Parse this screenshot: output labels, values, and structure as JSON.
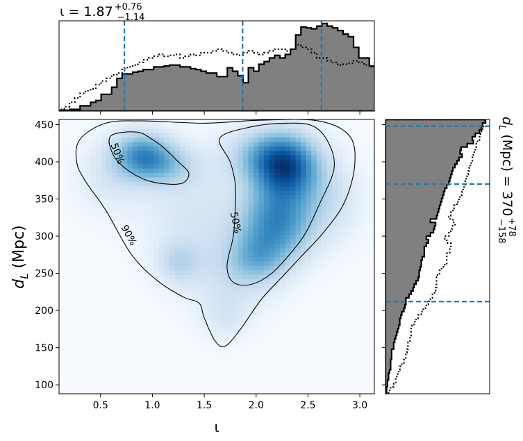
{
  "figure": {
    "top_title": {
      "base": "ι = 1.87",
      "sup": "+0.76",
      "sub": "−1.14"
    },
    "right_title": {
      "base": "d",
      "base_sub": "L",
      "rest": " (Mpc) = 370",
      "sup": "+78",
      "sub": "−158"
    }
  },
  "chart_data": [
    {
      "id": "joint",
      "type": "heatmap",
      "xlabel": "ι",
      "ylabel": {
        "base": "d",
        "sub": "L",
        "rest": " (Mpc)"
      },
      "xlim": [
        0.1,
        3.14
      ],
      "ylim": [
        88,
        457
      ],
      "xticks": [
        0.5,
        1.0,
        1.5,
        2.0,
        2.5,
        3.0
      ],
      "xtick_labels": [
        "0.5",
        "1.0",
        "1.5",
        "2.0",
        "2.5",
        "3.0"
      ],
      "yticks": [
        100,
        150,
        200,
        250,
        300,
        350,
        400,
        450
      ],
      "ytick_labels": [
        "100",
        "150",
        "200",
        "250",
        "300",
        "350",
        "400",
        "450"
      ],
      "colormap": "Blues",
      "density_blobs": [
        {
          "x": 0.9,
          "y": 410,
          "sx": 0.2,
          "sy": 22,
          "w": 0.75
        },
        {
          "x": 1.15,
          "y": 395,
          "sx": 0.22,
          "sy": 20,
          "w": 0.35
        },
        {
          "x": 2.3,
          "y": 395,
          "sx": 0.22,
          "sy": 30,
          "w": 1.0
        },
        {
          "x": 2.05,
          "y": 410,
          "sx": 0.25,
          "sy": 25,
          "w": 0.45
        },
        {
          "x": 2.2,
          "y": 320,
          "sx": 0.25,
          "sy": 38,
          "w": 0.85
        },
        {
          "x": 2.0,
          "y": 270,
          "sx": 0.2,
          "sy": 25,
          "w": 0.4
        },
        {
          "x": 1.4,
          "y": 330,
          "sx": 0.35,
          "sy": 55,
          "w": 0.22
        },
        {
          "x": 1.25,
          "y": 265,
          "sx": 0.15,
          "sy": 20,
          "w": 0.3
        },
        {
          "x": 1.75,
          "y": 240,
          "sx": 0.3,
          "sy": 40,
          "w": 0.2
        },
        {
          "x": 1.7,
          "y": 190,
          "sx": 0.15,
          "sy": 22,
          "w": 0.15
        },
        {
          "x": 2.7,
          "y": 350,
          "sx": 0.25,
          "sy": 40,
          "w": 0.25
        },
        {
          "x": 0.6,
          "y": 380,
          "sx": 0.25,
          "sy": 35,
          "w": 0.2
        }
      ],
      "contours": [
        {
          "label": "90%",
          "label_at": [
            0.77,
            301
          ],
          "label_rotation": 62,
          "points": [
            [
              0.27,
              400
            ],
            [
              0.3,
              430
            ],
            [
              0.55,
              452
            ],
            [
              0.9,
              455
            ],
            [
              1.5,
              452
            ],
            [
              2.05,
              456
            ],
            [
              2.6,
              455
            ],
            [
              2.9,
              435
            ],
            [
              2.95,
              395
            ],
            [
              2.85,
              345
            ],
            [
              2.65,
              305
            ],
            [
              2.45,
              275
            ],
            [
              2.25,
              245
            ],
            [
              2.05,
              215
            ],
            [
              1.85,
              175
            ],
            [
              1.7,
              152
            ],
            [
              1.6,
              160
            ],
            [
              1.5,
              190
            ],
            [
              1.45,
              210
            ],
            [
              1.3,
              218
            ],
            [
              1.05,
              240
            ],
            [
              0.8,
              275
            ],
            [
              0.55,
              335
            ],
            [
              0.35,
              375
            ]
          ]
        },
        {
          "label": "50%",
          "label_at": [
            0.66,
            411
          ],
          "label_rotation": 68,
          "points": [
            [
              0.6,
              435
            ],
            [
              0.85,
              440
            ],
            [
              1.0,
              430
            ],
            [
              1.1,
              420
            ],
            [
              1.25,
              400
            ],
            [
              1.35,
              385
            ],
            [
              1.3,
              372
            ],
            [
              1.15,
              370
            ],
            [
              0.95,
              375
            ],
            [
              0.75,
              390
            ],
            [
              0.62,
              410
            ]
          ]
        },
        {
          "label": "50%",
          "label_at": [
            1.8,
            318
          ],
          "label_rotation": 78,
          "points": [
            [
              1.65,
              432
            ],
            [
              1.95,
              447
            ],
            [
              2.3,
              452
            ],
            [
              2.55,
              448
            ],
            [
              2.7,
              425
            ],
            [
              2.75,
              390
            ],
            [
              2.6,
              340
            ],
            [
              2.48,
              305
            ],
            [
              2.35,
              280
            ],
            [
              2.15,
              250
            ],
            [
              1.95,
              235
            ],
            [
              1.78,
              238
            ],
            [
              1.72,
              260
            ],
            [
              1.78,
              300
            ],
            [
              1.8,
              340
            ],
            [
              1.8,
              370
            ],
            [
              1.75,
              400
            ]
          ]
        }
      ]
    },
    {
      "id": "top-marginal",
      "type": "histogram",
      "xlim": [
        0.1,
        3.14
      ],
      "bin_start": 0.1,
      "bin_width": 0.0507,
      "series": [
        {
          "values": [
            0.01,
            0.01,
            0.02,
            0.02,
            0.06,
            0.06,
            0.1,
            0.12,
            0.19,
            0.19,
            0.27,
            0.37,
            0.42,
            0.42,
            0.44,
            0.45,
            0.47,
            0.47,
            0.5,
            0.5,
            0.51,
            0.52,
            0.52,
            0.5,
            0.5,
            0.48,
            0.47,
            0.45,
            0.43,
            0.43,
            0.39,
            0.39,
            0.49,
            0.45,
            0.4,
            0.32,
            0.49,
            0.45,
            0.53,
            0.56,
            0.6,
            0.63,
            0.6,
            0.64,
            0.7,
            0.86,
            0.95,
            0.94,
            0.93,
            0.96,
            0.99,
            0.96,
            0.94,
            0.91,
            0.87,
            0.84,
            0.72,
            0.6,
            0.6,
            0.51,
            0.37,
            0.3,
            0.19,
            0.18,
            0.14,
            0.12,
            0.1,
            0.09,
            0.08,
            0.07,
            0.06,
            0.06,
            0.06,
            0.05,
            0.04,
            0.03,
            0.01,
            0.01,
            0.01,
            0.01
          ]
        },
        {
          "values": [
            0.02,
            0.05,
            0.1,
            0.15,
            0.2,
            0.23,
            0.25,
            0.3,
            0.34,
            0.37,
            0.41,
            0.43,
            0.48,
            0.5,
            0.52,
            0.55,
            0.58,
            0.6,
            0.62,
            0.64,
            0.62,
            0.63,
            0.64,
            0.6,
            0.62,
            0.64,
            0.63,
            0.66,
            0.66,
            0.68,
            0.7,
            0.68,
            0.66,
            0.64,
            0.63,
            0.66,
            0.68,
            0.66,
            0.64,
            0.66,
            0.68,
            0.7,
            0.7,
            0.68,
            0.7,
            0.75,
            0.72,
            0.7,
            0.66,
            0.6,
            0.6,
            0.57,
            0.55,
            0.52,
            0.53,
            0.54,
            0.57,
            0.55,
            0.52,
            0.5,
            0.47,
            0.43,
            0.4,
            0.38,
            0.35,
            0.3,
            0.27,
            0.25,
            0.22,
            0.2,
            0.18,
            0.16,
            0.13,
            0.11,
            0.1,
            0.08,
            0.07,
            0.06,
            0.04,
            0.02
          ]
        }
      ],
      "median": 1.87,
      "quantile_lines": [
        0.73,
        1.87,
        2.63
      ],
      "ylim": [
        0,
        1.02
      ]
    },
    {
      "id": "right-marginal",
      "type": "histogram",
      "orientation": "horizontal",
      "ylim": [
        88,
        457
      ],
      "bin_start": 88,
      "bin_width": 4.61,
      "series": [
        {
          "values": [
            0.01,
            0.01,
            0.02,
            0.02,
            0.03,
            0.03,
            0.04,
            0.05,
            0.05,
            0.05,
            0.06,
            0.06,
            0.06,
            0.08,
            0.08,
            0.09,
            0.1,
            0.11,
            0.12,
            0.13,
            0.14,
            0.14,
            0.15,
            0.16,
            0.18,
            0.19,
            0.2,
            0.2,
            0.23,
            0.25,
            0.27,
            0.28,
            0.3,
            0.32,
            0.33,
            0.33,
            0.34,
            0.35,
            0.35,
            0.36,
            0.38,
            0.38,
            0.38,
            0.4,
            0.42,
            0.4,
            0.44,
            0.47,
            0.48,
            0.49,
            0.44,
            0.5,
            0.51,
            0.52,
            0.53,
            0.54,
            0.55,
            0.56,
            0.57,
            0.58,
            0.6,
            0.62,
            0.63,
            0.64,
            0.65,
            0.66,
            0.68,
            0.7,
            0.72,
            0.75,
            0.73,
            0.74,
            0.8,
            0.86,
            0.85,
            0.88,
            0.92,
            0.94,
            0.95,
            0.98
          ]
        },
        {
          "values": [
            0.03,
            0.05,
            0.08,
            0.1,
            0.1,
            0.12,
            0.13,
            0.14,
            0.16,
            0.18,
            0.2,
            0.2,
            0.21,
            0.22,
            0.22,
            0.24,
            0.24,
            0.25,
            0.25,
            0.26,
            0.28,
            0.3,
            0.32,
            0.35,
            0.37,
            0.4,
            0.42,
            0.44,
            0.46,
            0.48,
            0.49,
            0.5,
            0.5,
            0.5,
            0.51,
            0.53,
            0.55,
            0.58,
            0.6,
            0.6,
            0.6,
            0.63,
            0.63,
            0.64,
            0.6,
            0.58,
            0.62,
            0.64,
            0.65,
            0.68,
            0.66,
            0.62,
            0.64,
            0.66,
            0.67,
            0.7,
            0.72,
            0.73,
            0.75,
            0.76,
            0.77,
            0.78,
            0.79,
            0.8,
            0.81,
            0.82,
            0.83,
            0.84,
            0.85,
            0.86,
            0.87,
            0.88,
            0.89,
            0.9,
            0.92,
            0.93,
            0.94,
            0.95,
            0.96,
            0.97
          ]
        }
      ],
      "median": 370,
      "quantile_lines": [
        212,
        370,
        448
      ],
      "xlim": [
        0,
        1.02
      ]
    }
  ],
  "colors": {
    "hist_fill": "#808080",
    "hist_edge": "#000000",
    "quantile_line": "#1f77b4",
    "contour": "#000000"
  }
}
